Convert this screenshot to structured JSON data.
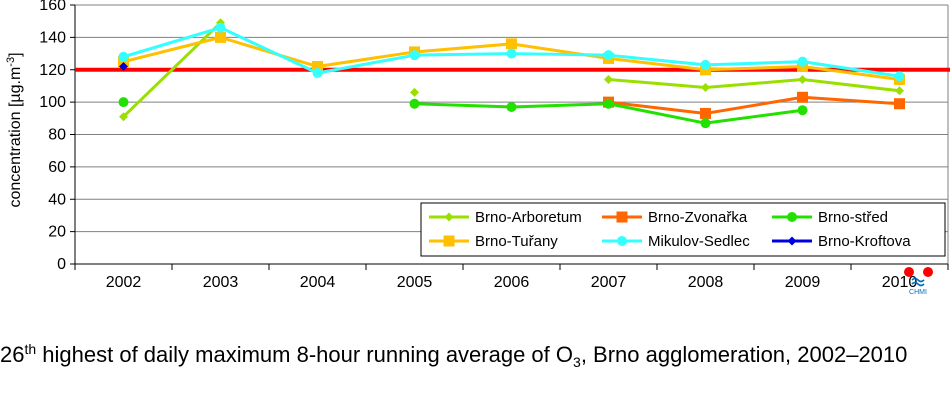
{
  "chart_data": {
    "type": "line",
    "title": "",
    "xlabel": "",
    "ylabel": "concentration [µg.m-3]",
    "ylabel_parts": {
      "main": "concentration [µg.m",
      "sup": "-3",
      "end": "]"
    },
    "ylim": [
      0,
      160
    ],
    "yticks": [
      "0",
      "20",
      "40",
      "60",
      "80",
      "100",
      "120",
      "140",
      "160"
    ],
    "categories": [
      "2002",
      "2003",
      "2004",
      "2005",
      "2006",
      "2007",
      "2008",
      "2009",
      "2010"
    ],
    "grid": true,
    "legend_position": "bottom-right",
    "limit_value": 120,
    "limit_color": "#ff0000",
    "series": [
      {
        "name": "Brno-Arboretum",
        "color": "#99e000",
        "marker": "diamond",
        "values": [
          91,
          149,
          null,
          106,
          null,
          114,
          109,
          114,
          107
        ],
        "segments": [
          [
            0,
            1
          ],
          [
            5,
            6,
            7,
            8
          ]
        ]
      },
      {
        "name": "Brno-Zvonařka",
        "color": "#ff6600",
        "marker": "square",
        "values": [
          null,
          null,
          null,
          null,
          null,
          100,
          93,
          103,
          99
        ],
        "segments": [
          [
            5,
            6,
            7,
            8
          ]
        ]
      },
      {
        "name": "Brno-střed",
        "color": "#22e000",
        "marker": "circle",
        "values": [
          100,
          null,
          null,
          99,
          97,
          99,
          87,
          95,
          null
        ],
        "segments": [
          [
            3,
            4,
            5,
            6,
            7
          ]
        ]
      },
      {
        "name": "Brno-Tuřany",
        "color": "#ffc000",
        "marker": "square",
        "values": [
          125,
          140,
          122,
          131,
          136,
          127,
          120,
          122,
          114
        ],
        "segments": [
          [
            0,
            1,
            2,
            3,
            4,
            5,
            6,
            7,
            8
          ]
        ]
      },
      {
        "name": "Mikulov-Sedlec",
        "color": "#33ffff",
        "marker": "circle",
        "values": [
          128,
          146,
          118,
          129,
          130,
          129,
          123,
          125,
          116
        ],
        "segments": [
          [
            0,
            1,
            2,
            3,
            4,
            5,
            6,
            7,
            8
          ]
        ]
      },
      {
        "name": "Brno-Kroftova",
        "color": "#0000dd",
        "marker": "diamond",
        "values": [
          122,
          null,
          null,
          null,
          null,
          null,
          null,
          null,
          null
        ],
        "segments": []
      }
    ]
  },
  "logo": {
    "text": "CHMI",
    "colors": {
      "dots": "#ff0000",
      "wave": "#0070c0"
    }
  },
  "caption": {
    "ordinal_number": "26",
    "ordinal_suffix": "th",
    "part1": " highest of daily maximum 8-hour running average of O",
    "subscript": "3",
    "part2": ", Brno agglomeration, 2002–2010"
  }
}
